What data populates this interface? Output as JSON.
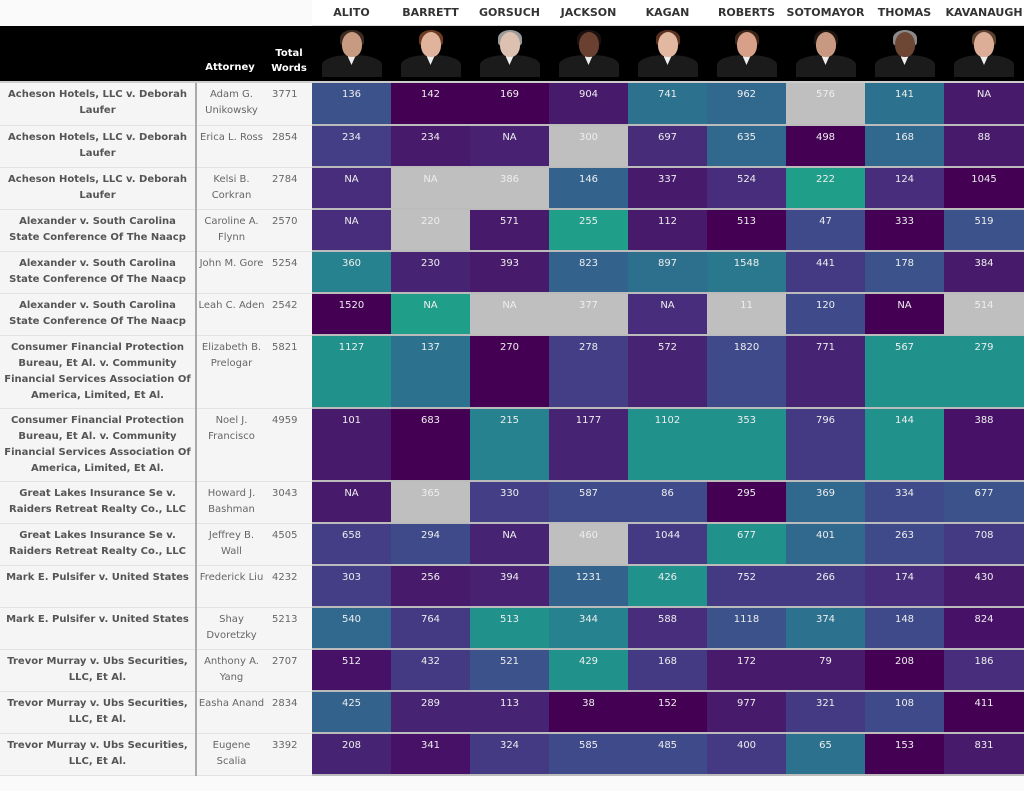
{
  "header": {
    "justices": [
      "ALITO",
      "BARRETT",
      "GORSUCH",
      "JACKSON",
      "KAGAN",
      "ROBERTS",
      "SOTOMAYOR",
      "THOMAS",
      "KAVANAUGH"
    ],
    "attorney_label": "Attorney",
    "total_label_line1": "Total",
    "total_label_line2": "Words",
    "portrait_colors": {
      "ALITO": {
        "skin": "#c99a82",
        "hair": "#3a2a22"
      },
      "BARRETT": {
        "skin": "#e0b49c",
        "hair": "#6b3b22"
      },
      "GORSUCH": {
        "skin": "#dcc0b0",
        "hair": "#9a9a9a"
      },
      "JACKSON": {
        "skin": "#6a4030",
        "hair": "#1a1010"
      },
      "KAGAN": {
        "skin": "#e2b8a0",
        "hair": "#5a3020"
      },
      "ROBERTS": {
        "skin": "#d8a088",
        "hair": "#3a2418"
      },
      "SOTOMAYOR": {
        "skin": "#c89880",
        "hair": "#1e1410"
      },
      "THOMAS": {
        "skin": "#6e4634",
        "hair": "#8a8a8a"
      },
      "KAVANAUGH": {
        "skin": "#dcae98",
        "hair": "#5a4030"
      }
    }
  },
  "colors": {
    "na_gray": "#bfbfbf"
  },
  "rows": [
    {
      "case": "Acheson Hotels, LLC v. Deborah Laufer",
      "attorney": "Adam G. Unikowsky",
      "total": "3771",
      "tall": false,
      "values": [
        "136",
        "142",
        "169",
        "904",
        "741",
        "962",
        "576",
        "141",
        "NA"
      ],
      "colors": [
        "#3b528b",
        "#440154",
        "#440154",
        "#481a6c",
        "#2c728e",
        "#31688e",
        "#bfbfbf",
        "#2c728e",
        "#481a6c"
      ]
    },
    {
      "case": "Acheson Hotels, LLC v. Deborah Laufer",
      "attorney": "Erica L. Ross",
      "total": "2854",
      "tall": false,
      "values": [
        "234",
        "234",
        "NA",
        "300",
        "697",
        "635",
        "498",
        "168",
        "88"
      ],
      "colors": [
        "#433e85",
        "#481a6c",
        "#482173",
        "#bfbfbf",
        "#472c7a",
        "#31688e",
        "#440154",
        "#31688e",
        "#481a6c"
      ]
    },
    {
      "case": "Acheson Hotels, LLC v. Deborah Laufer",
      "attorney": "Kelsi B. Corkran",
      "total": "2784",
      "tall": false,
      "values": [
        "NA",
        "NA",
        "386",
        "146",
        "337",
        "524",
        "222",
        "124",
        "1045"
      ],
      "colors": [
        "#472d7b",
        "#bfbfbf",
        "#bfbfbf",
        "#33638d",
        "#481a6c",
        "#472d7b",
        "#1f9e89",
        "#472d7b",
        "#440154"
      ]
    },
    {
      "case": "Alexander v. South Carolina State Conference Of The Naacp",
      "attorney": "Caroline A. Flynn",
      "total": "2570",
      "tall": false,
      "values": [
        "NA",
        "220",
        "571",
        "255",
        "112",
        "513",
        "47",
        "333",
        "519"
      ],
      "colors": [
        "#472d7b",
        "#bfbfbf",
        "#481a6c",
        "#1f9e89",
        "#481a6c",
        "#440154",
        "#3e4a89",
        "#440154",
        "#3b528b"
      ]
    },
    {
      "case": "Alexander v. South Carolina State Conference Of The Naacp",
      "attorney": "John M. Gore",
      "total": "5254",
      "tall": false,
      "values": [
        "360",
        "230",
        "393",
        "823",
        "897",
        "1548",
        "441",
        "178",
        "384"
      ],
      "colors": [
        "#26828e",
        "#472373",
        "#481a6c",
        "#33638d",
        "#2d708e",
        "#2a788e",
        "#443983",
        "#3b528b",
        "#481a6c"
      ]
    },
    {
      "case": "Alexander v. South Carolina State Conference Of The Naacp",
      "attorney": "Leah C. Aden",
      "total": "2542",
      "tall": false,
      "values": [
        "1520",
        "NA",
        "NA",
        "377",
        "NA",
        "11",
        "120",
        "NA",
        "514"
      ],
      "colors": [
        "#440154",
        "#1f9e89",
        "#bfbfbf",
        "#bfbfbf",
        "#472d7b",
        "#bfbfbf",
        "#3e4a89",
        "#440154",
        "#bfbfbf"
      ]
    },
    {
      "case": "Consumer Financial Protection Bureau, Et Al. v. Community Financial Services Association Of America, Limited, Et Al.",
      "attorney": "Elizabeth B. Prelogar",
      "total": "5821",
      "tall": true,
      "values": [
        "1127",
        "137",
        "270",
        "278",
        "572",
        "1820",
        "771",
        "567",
        "279"
      ],
      "colors": [
        "#21918c",
        "#2c728e",
        "#440154",
        "#433e85",
        "#472373",
        "#3e4a89",
        "#472373",
        "#21918c",
        "#21918c"
      ]
    },
    {
      "case": "Consumer Financial Protection Bureau, Et Al. v. Community Financial Services Association Of America, Limited, Et Al.",
      "attorney": "Noel J. Francisco",
      "total": "4959",
      "tall": true,
      "values": [
        "101",
        "683",
        "215",
        "1177",
        "1102",
        "353",
        "796",
        "144",
        "388"
      ],
      "colors": [
        "#481a6c",
        "#440154",
        "#26828e",
        "#472373",
        "#21918c",
        "#21918c",
        "#443983",
        "#21918c",
        "#481168"
      ]
    },
    {
      "case": "Great Lakes Insurance Se v. Raiders Retreat Realty Co., LLC",
      "attorney": "Howard J. Bashman",
      "total": "3043",
      "tall": false,
      "values": [
        "NA",
        "365",
        "330",
        "587",
        "86",
        "295",
        "369",
        "334",
        "677"
      ],
      "colors": [
        "#481a6c",
        "#bfbfbf",
        "#433e85",
        "#3e4a89",
        "#3e4a89",
        "#440154",
        "#31688e",
        "#3e4a89",
        "#3b528b"
      ]
    },
    {
      "case": "Great Lakes Insurance Se v. Raiders Retreat Realty Co., LLC",
      "attorney": "Jeffrey B. Wall",
      "total": "4505",
      "tall": false,
      "values": [
        "658",
        "294",
        "NA",
        "460",
        "1044",
        "677",
        "401",
        "263",
        "708"
      ],
      "colors": [
        "#433e85",
        "#3e4a89",
        "#472373",
        "#bfbfbf",
        "#443983",
        "#21918c",
        "#31688e",
        "#3e4a89",
        "#443983"
      ]
    },
    {
      "case": "Mark E. Pulsifer v. United States",
      "attorney": "Frederick Liu",
      "total": "4232",
      "tall": false,
      "values": [
        "303",
        "256",
        "394",
        "1231",
        "426",
        "752",
        "266",
        "174",
        "430"
      ],
      "colors": [
        "#433e85",
        "#481a6c",
        "#482173",
        "#33638d",
        "#21918c",
        "#443983",
        "#443983",
        "#472d7b",
        "#481a6c"
      ]
    },
    {
      "case": "Mark E. Pulsifer v. United States",
      "attorney": "Shay Dvoretzky",
      "total": "5213",
      "tall": false,
      "values": [
        "540",
        "764",
        "513",
        "344",
        "588",
        "1118",
        "374",
        "148",
        "824"
      ],
      "colors": [
        "#31688e",
        "#443983",
        "#21918c",
        "#26828e",
        "#472d7b",
        "#3b528b",
        "#2c728e",
        "#3e4a89",
        "#481168"
      ]
    },
    {
      "case": "Trevor Murray v. Ubs Securities, LLC, Et Al.",
      "attorney": "Anthony A. Yang",
      "total": "2707",
      "tall": false,
      "values": [
        "512",
        "432",
        "521",
        "429",
        "168",
        "172",
        "79",
        "208",
        "186"
      ],
      "colors": [
        "#481168",
        "#443983",
        "#3b528b",
        "#21918c",
        "#443983",
        "#481a6c",
        "#481a6c",
        "#440154",
        "#472d7b"
      ]
    },
    {
      "case": "Trevor Murray v. Ubs Securities, LLC, Et Al.",
      "attorney": "Easha Anand",
      "total": "2834",
      "tall": false,
      "values": [
        "425",
        "289",
        "113",
        "38",
        "152",
        "977",
        "321",
        "108",
        "411"
      ],
      "colors": [
        "#33638d",
        "#472373",
        "#472373",
        "#440154",
        "#440154",
        "#481a6c",
        "#443983",
        "#3e4a89",
        "#440154"
      ]
    },
    {
      "case": "Trevor Murray v. Ubs Securities, LLC, Et Al.",
      "attorney": "Eugene Scalia",
      "total": "3392",
      "tall": false,
      "values": [
        "208",
        "341",
        "324",
        "585",
        "485",
        "400",
        "65",
        "153",
        "831"
      ],
      "colors": [
        "#472373",
        "#481168",
        "#443983",
        "#3e4a89",
        "#3e4a89",
        "#443983",
        "#2c728e",
        "#440154",
        "#481a6c"
      ]
    }
  ]
}
